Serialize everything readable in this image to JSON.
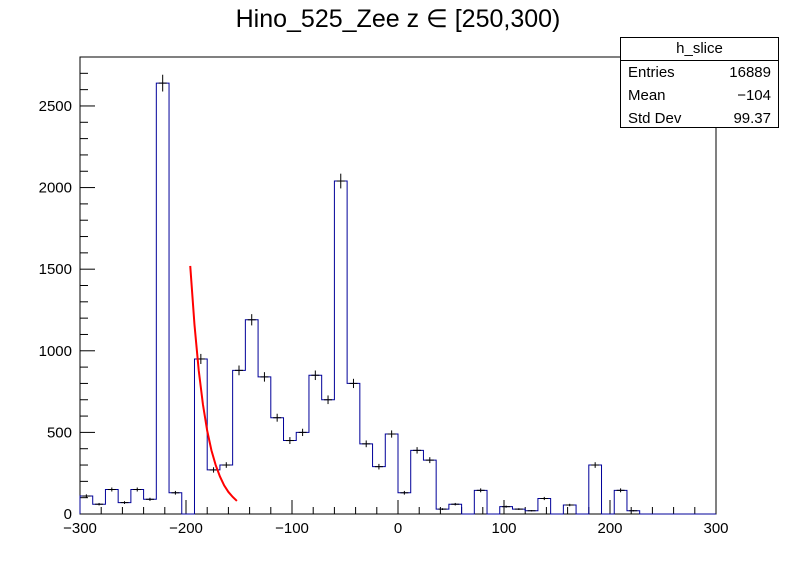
{
  "chart_data": {
    "type": "histogram",
    "title": "Hino_525_Zee z  ∈ [250,300)",
    "xlabel": "",
    "ylabel": "",
    "xlim": [
      -300,
      300
    ],
    "ylim": [
      0,
      2800
    ],
    "bin_width": 12,
    "xticks": [
      "−300",
      "−200",
      "−100",
      "0",
      "100",
      "200",
      "300"
    ],
    "xtick_values": [
      -300,
      -200,
      -100,
      0,
      100,
      200,
      300
    ],
    "yticks": [
      "0",
      "500",
      "1000",
      "1500",
      "2000",
      "2500"
    ],
    "ytick_values": [
      0,
      500,
      1000,
      1500,
      2000,
      2500
    ],
    "bins_x_low": [
      -300,
      -288,
      -276,
      -264,
      -252,
      -240,
      -228,
      -216,
      -204,
      -192,
      -180,
      -168,
      -156,
      -144,
      -132,
      -120,
      -108,
      -96,
      -84,
      -72,
      -60,
      -48,
      -36,
      -24,
      -12,
      0,
      12,
      24,
      36,
      48,
      60,
      72,
      84,
      96,
      108,
      120,
      132,
      144,
      156,
      168,
      180,
      192,
      204,
      216,
      228,
      240,
      252,
      264,
      276,
      288
    ],
    "values": [
      110,
      60,
      150,
      70,
      150,
      90,
      2640,
      130,
      0,
      950,
      270,
      300,
      880,
      1190,
      840,
      590,
      450,
      500,
      850,
      700,
      2040,
      800,
      430,
      290,
      490,
      130,
      390,
      330,
      30,
      60,
      0,
      145,
      0,
      45,
      30,
      20,
      95,
      0,
      55,
      0,
      300,
      0,
      145,
      20,
      0,
      0,
      0,
      0,
      0,
      0
    ],
    "fit_color": "#ff0000",
    "hist_color": "#000099",
    "fit_curve": {
      "x": [
        -196,
        -192,
        -188,
        -184,
        -180,
        -176,
        -172,
        -168,
        -164,
        -160,
        -156,
        -152
      ],
      "y": [
        1520,
        1160,
        880,
        670,
        510,
        390,
        300,
        230,
        175,
        135,
        105,
        80
      ]
    },
    "stats_box": {
      "name": "h_slice",
      "entries_label": "Entries",
      "entries": "16889",
      "mean_label": "Mean",
      "mean": "−104",
      "stddev_label": "Std Dev",
      "stddev": "99.37"
    }
  }
}
